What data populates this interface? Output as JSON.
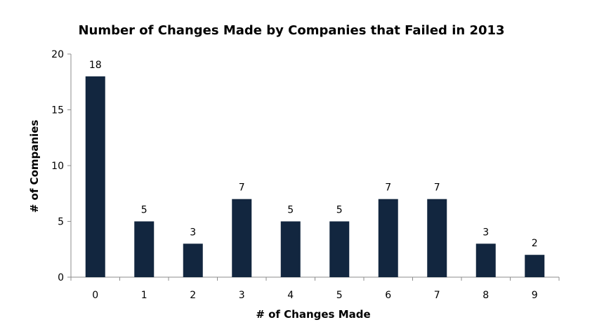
{
  "chart_data": {
    "type": "bar",
    "title": "Number of Changes Made by Companies that Failed in 2013",
    "xlabel": "# of Changes Made",
    "ylabel": "# of Companies",
    "categories": [
      "0",
      "1",
      "2",
      "3",
      "4",
      "5",
      "6",
      "7",
      "8",
      "9"
    ],
    "values": [
      18,
      5,
      3,
      7,
      5,
      5,
      7,
      7,
      3,
      2
    ],
    "ylim": [
      0,
      20
    ],
    "yticks": [
      0,
      5,
      10,
      15,
      20
    ],
    "grid": false,
    "legend": "none",
    "bar_color": "#12263f",
    "show_data_labels": true
  }
}
